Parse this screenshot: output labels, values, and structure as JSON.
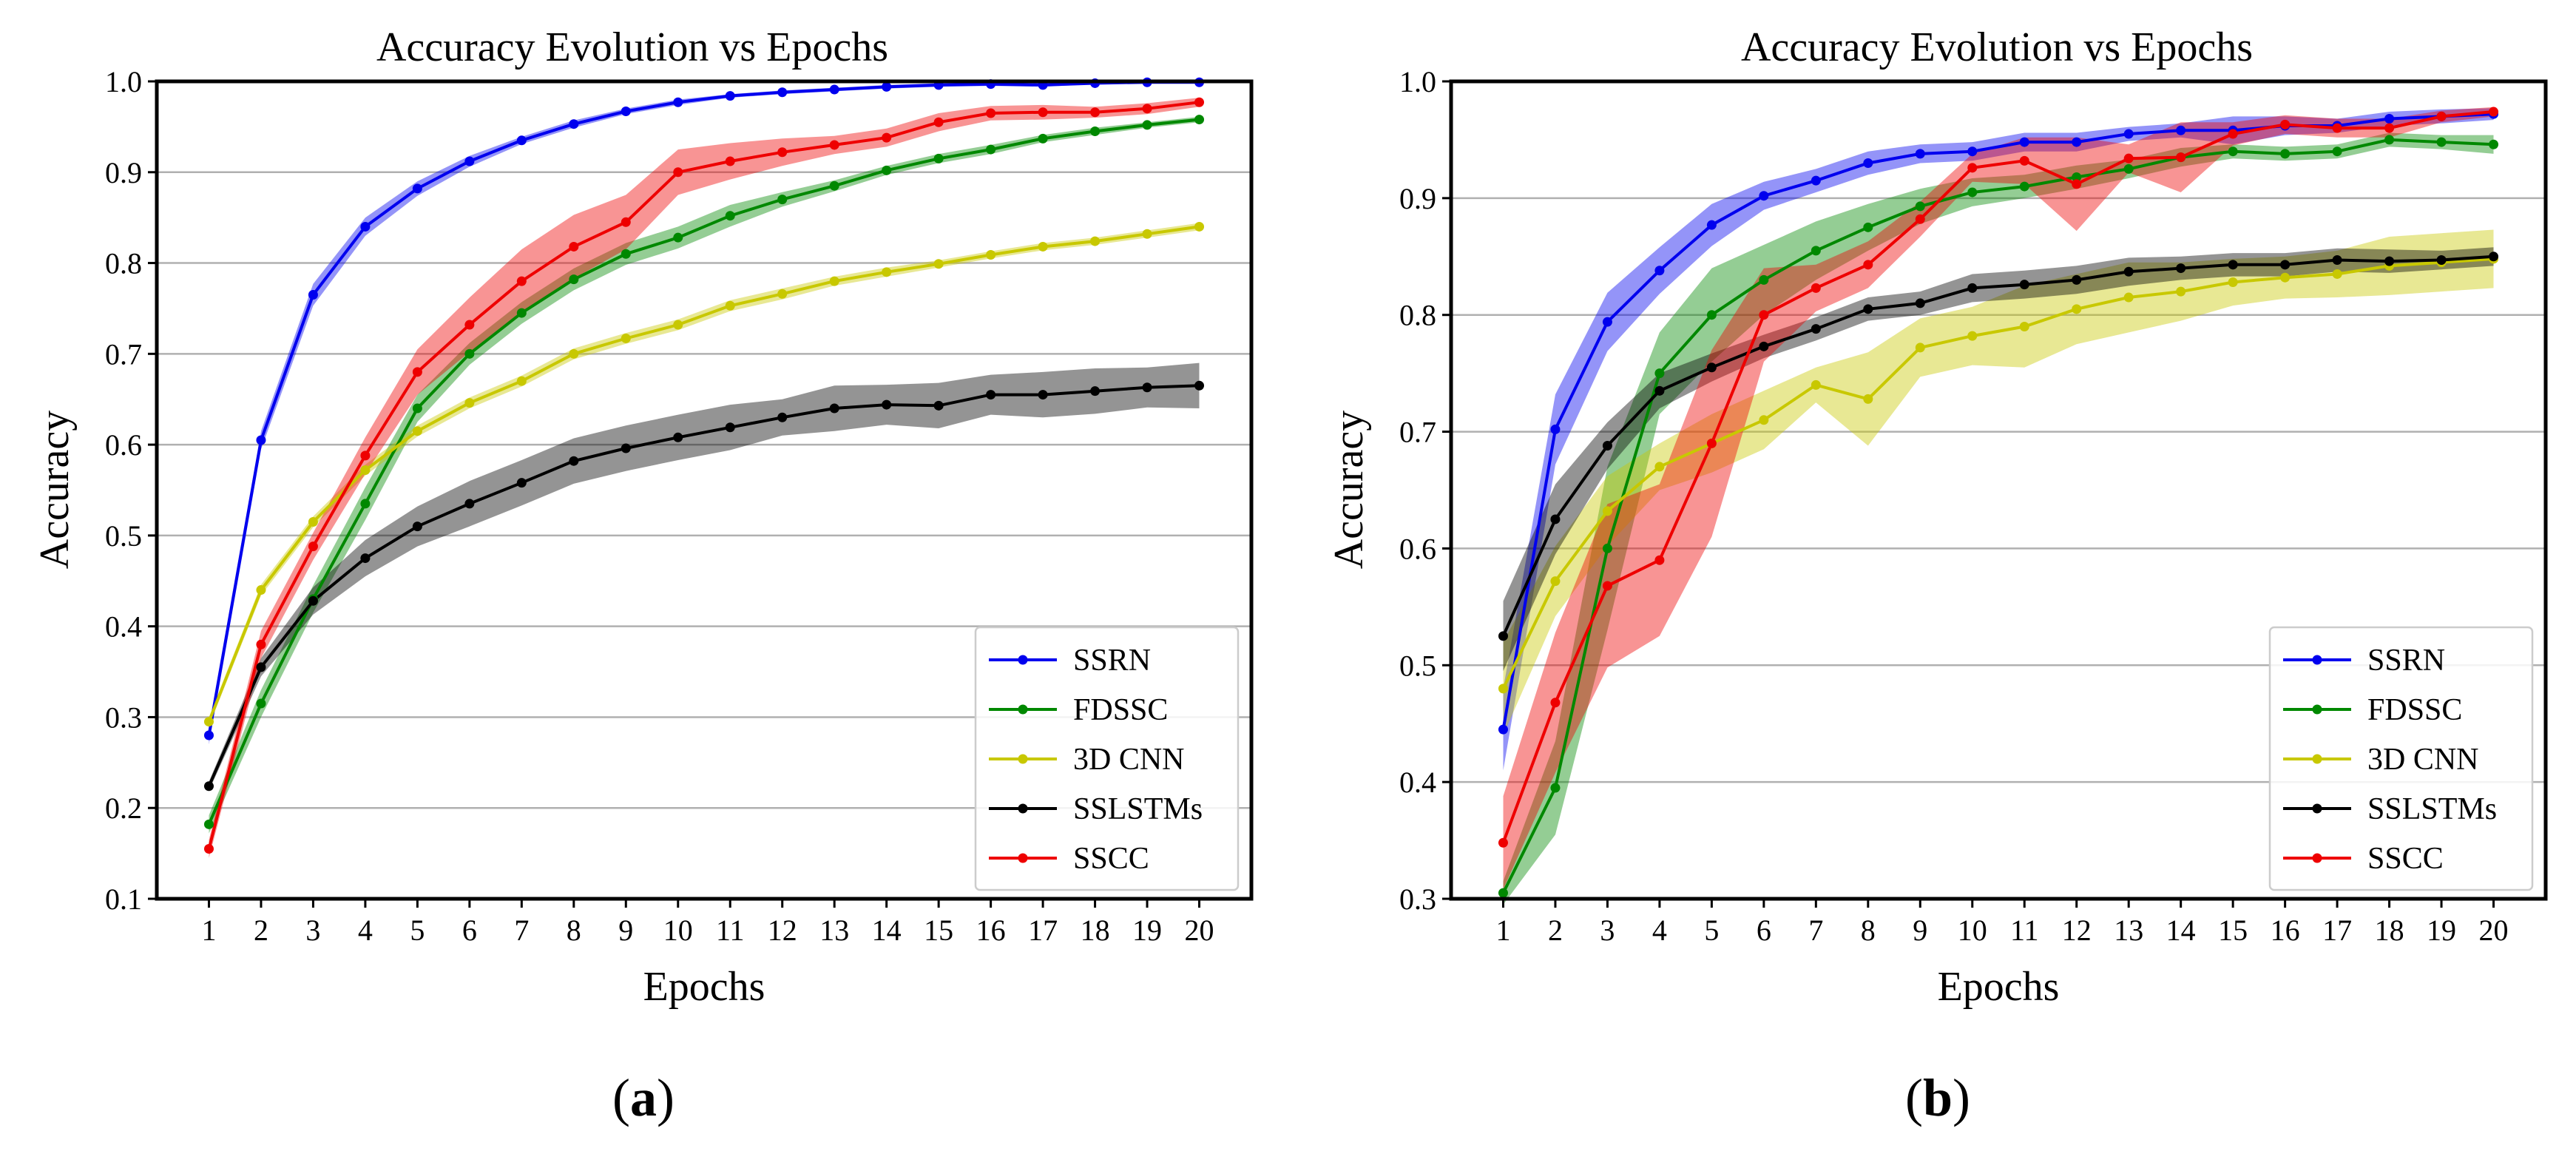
{
  "figure": {
    "panels": [
      {
        "id": "a",
        "label": "(a)",
        "letter": "a",
        "title": "Accuracy Evolution vs Epochs",
        "xlabel": "Epochs",
        "ylabel": "Accuracy"
      },
      {
        "id": "b",
        "label": "(b)",
        "letter": "b",
        "title": "Accuracy Evolution vs Epochs",
        "xlabel": "Epochs",
        "ylabel": "Accuracy"
      }
    ]
  },
  "chart_data": [
    {
      "type": "line",
      "panel": "a",
      "title": "Accuracy Evolution vs Epochs",
      "xlabel": "Epochs",
      "ylabel": "Accuracy",
      "x": [
        1,
        2,
        3,
        4,
        5,
        6,
        7,
        8,
        9,
        10,
        11,
        12,
        13,
        14,
        15,
        16,
        17,
        18,
        19,
        20
      ],
      "xticks": [
        "1",
        "2",
        "3",
        "4",
        "5",
        "6",
        "7",
        "8",
        "9",
        "10",
        "11",
        "12",
        "13",
        "14",
        "15",
        "16",
        "17",
        "18",
        "19",
        "20"
      ],
      "ylim": [
        0.1,
        1.0
      ],
      "yticks": [
        "0.1",
        "0.2",
        "0.3",
        "0.4",
        "0.5",
        "0.6",
        "0.7",
        "0.8",
        "0.9",
        "1.0"
      ],
      "ytick_values": [
        0.1,
        0.2,
        0.3,
        0.4,
        0.5,
        0.6,
        0.7,
        0.8,
        0.9,
        1.0
      ],
      "grid": "horizontal",
      "legend_position": "lower-right",
      "series": [
        {
          "name": "SSRN",
          "color": "#0000ee",
          "values": [
            0.28,
            0.605,
            0.765,
            0.84,
            0.882,
            0.912,
            0.935,
            0.953,
            0.967,
            0.977,
            0.984,
            0.988,
            0.991,
            0.994,
            0.996,
            0.997,
            0.996,
            0.998,
            0.999,
            0.999
          ],
          "band": [
            0.01,
            0.01,
            0.012,
            0.01,
            0.008,
            0.006,
            0.004,
            0.004,
            0.003,
            0.003,
            0.002,
            0.002,
            0.002,
            0.002,
            0.002,
            0.002,
            0.002,
            0.001,
            0.001,
            0.001
          ]
        },
        {
          "name": "FDSSC",
          "color": "#008800",
          "values": [
            0.182,
            0.315,
            0.43,
            0.535,
            0.64,
            0.7,
            0.745,
            0.782,
            0.81,
            0.828,
            0.852,
            0.87,
            0.885,
            0.902,
            0.915,
            0.925,
            0.937,
            0.945,
            0.952,
            0.958
          ],
          "band": [
            0.01,
            0.015,
            0.015,
            0.018,
            0.015,
            0.012,
            0.012,
            0.012,
            0.012,
            0.012,
            0.012,
            0.008,
            0.006,
            0.005,
            0.005,
            0.005,
            0.004,
            0.004,
            0.003,
            0.003
          ]
        },
        {
          "name": "3D CNN",
          "color": "#c8c800",
          "values": [
            0.295,
            0.44,
            0.515,
            0.572,
            0.615,
            0.646,
            0.67,
            0.7,
            0.717,
            0.732,
            0.753,
            0.766,
            0.78,
            0.79,
            0.799,
            0.809,
            0.818,
            0.824,
            0.832,
            0.84
          ],
          "band": [
            0.005,
            0.006,
            0.006,
            0.006,
            0.006,
            0.006,
            0.006,
            0.006,
            0.006,
            0.006,
            0.006,
            0.006,
            0.005,
            0.005,
            0.004,
            0.004,
            0.004,
            0.004,
            0.004,
            0.004
          ]
        },
        {
          "name": "SSLSTMs",
          "color": "#000000",
          "values": [
            0.224,
            0.355,
            0.428,
            0.475,
            0.51,
            0.535,
            0.558,
            0.582,
            0.596,
            0.608,
            0.619,
            0.63,
            0.64,
            0.644,
            0.643,
            0.655,
            0.655,
            0.659,
            0.663,
            0.665
          ],
          "band": [
            0.005,
            0.01,
            0.015,
            0.02,
            0.022,
            0.025,
            0.025,
            0.025,
            0.025,
            0.025,
            0.025,
            0.02,
            0.025,
            0.022,
            0.025,
            0.022,
            0.025,
            0.025,
            0.022,
            0.025
          ]
        },
        {
          "name": "SSCC",
          "color": "#ee0000",
          "values": [
            0.155,
            0.38,
            0.488,
            0.588,
            0.68,
            0.732,
            0.78,
            0.818,
            0.845,
            0.9,
            0.912,
            0.922,
            0.93,
            0.938,
            0.955,
            0.965,
            0.966,
            0.966,
            0.97,
            0.977
          ],
          "band": [
            0.01,
            0.015,
            0.015,
            0.02,
            0.025,
            0.03,
            0.035,
            0.035,
            0.03,
            0.025,
            0.02,
            0.015,
            0.01,
            0.01,
            0.01,
            0.008,
            0.008,
            0.006,
            0.006,
            0.005
          ]
        }
      ]
    },
    {
      "type": "line",
      "panel": "b",
      "title": "Accuracy Evolution vs Epochs",
      "xlabel": "Epochs",
      "ylabel": "Accuracy",
      "x": [
        1,
        2,
        3,
        4,
        5,
        6,
        7,
        8,
        9,
        10,
        11,
        12,
        13,
        14,
        15,
        16,
        17,
        18,
        19,
        20
      ],
      "xticks": [
        "1",
        "2",
        "3",
        "4",
        "5",
        "6",
        "7",
        "8",
        "9",
        "10",
        "11",
        "12",
        "13",
        "14",
        "15",
        "16",
        "17",
        "18",
        "19",
        "20"
      ],
      "ylim": [
        0.3,
        1.0
      ],
      "yticks": [
        "0.3",
        "0.4",
        "0.5",
        "0.6",
        "0.7",
        "0.8",
        "0.9",
        "1.0"
      ],
      "ytick_values": [
        0.3,
        0.4,
        0.5,
        0.6,
        0.7,
        0.8,
        0.9,
        1.0
      ],
      "grid": "horizontal",
      "legend_position": "lower-right",
      "series": [
        {
          "name": "SSRN",
          "color": "#0000ee",
          "values": [
            0.445,
            0.702,
            0.794,
            0.838,
            0.877,
            0.902,
            0.915,
            0.93,
            0.938,
            0.94,
            0.948,
            0.948,
            0.955,
            0.958,
            0.958,
            0.962,
            0.962,
            0.968,
            0.97,
            0.972
          ],
          "band": [
            0.035,
            0.03,
            0.025,
            0.02,
            0.018,
            0.012,
            0.01,
            0.01,
            0.008,
            0.008,
            0.008,
            0.008,
            0.006,
            0.006,
            0.012,
            0.008,
            0.006,
            0.006,
            0.006,
            0.005
          ]
        },
        {
          "name": "FDSSC",
          "color": "#008800",
          "values": [
            0.305,
            0.395,
            0.6,
            0.75,
            0.8,
            0.83,
            0.855,
            0.875,
            0.893,
            0.905,
            0.91,
            0.918,
            0.925,
            0.935,
            0.94,
            0.938,
            0.94,
            0.95,
            0.948,
            0.946
          ],
          "band": [
            0.01,
            0.04,
            0.07,
            0.035,
            0.04,
            0.03,
            0.025,
            0.02,
            0.015,
            0.012,
            0.01,
            0.01,
            0.008,
            0.008,
            0.006,
            0.006,
            0.006,
            0.006,
            0.006,
            0.008
          ]
        },
        {
          "name": "3D CNN",
          "color": "#c8c800",
          "values": [
            0.48,
            0.572,
            0.632,
            0.67,
            0.69,
            0.71,
            0.74,
            0.728,
            0.772,
            0.782,
            0.79,
            0.805,
            0.815,
            0.82,
            0.828,
            0.832,
            0.835,
            0.842,
            0.845,
            0.848
          ],
          "band": [
            0.04,
            0.03,
            0.03,
            0.02,
            0.025,
            0.025,
            0.015,
            0.04,
            0.025,
            0.025,
            0.035,
            0.03,
            0.03,
            0.025,
            0.02,
            0.018,
            0.02,
            0.025,
            0.025,
            0.025
          ]
        },
        {
          "name": "SSLSTMs",
          "color": "#000000",
          "values": [
            0.525,
            0.625,
            0.688,
            0.735,
            0.755,
            0.773,
            0.788,
            0.805,
            0.81,
            0.823,
            0.826,
            0.83,
            0.837,
            0.84,
            0.843,
            0.843,
            0.847,
            0.846,
            0.847,
            0.85
          ],
          "band": [
            0.03,
            0.03,
            0.02,
            0.015,
            0.012,
            0.01,
            0.01,
            0.01,
            0.01,
            0.012,
            0.012,
            0.012,
            0.012,
            0.01,
            0.01,
            0.01,
            0.01,
            0.01,
            0.008,
            0.008
          ]
        },
        {
          "name": "SSCC",
          "color": "#ee0000",
          "values": [
            0.348,
            0.468,
            0.568,
            0.59,
            0.69,
            0.8,
            0.823,
            0.843,
            0.882,
            0.926,
            0.932,
            0.912,
            0.934,
            0.935,
            0.955,
            0.963,
            0.96,
            0.96,
            0.97,
            0.974
          ],
          "band": [
            0.04,
            0.06,
            0.07,
            0.065,
            0.08,
            0.04,
            0.02,
            0.02,
            0.015,
            0.012,
            0.02,
            0.04,
            0.012,
            0.03,
            0.01,
            0.008,
            0.008,
            0.008,
            0.005,
            0.004
          ]
        }
      ]
    }
  ]
}
